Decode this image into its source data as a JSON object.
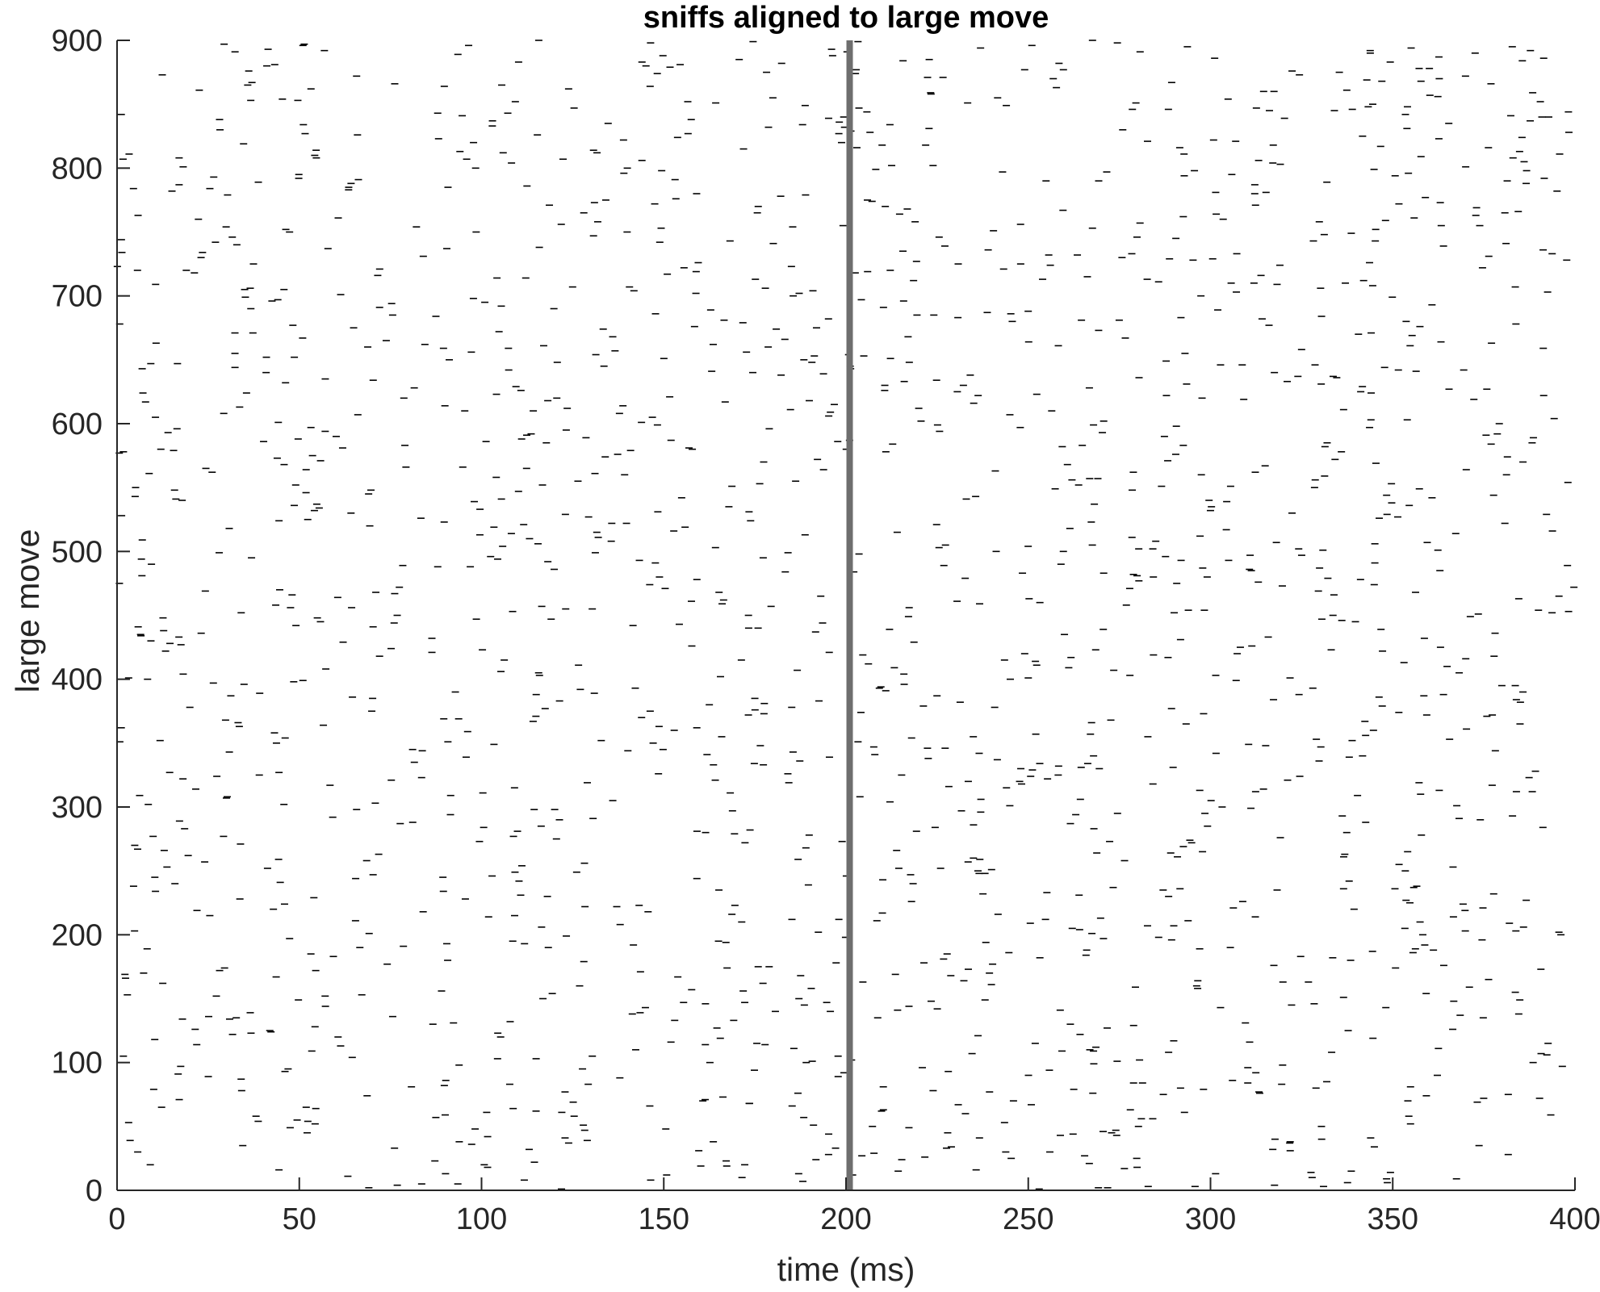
{
  "chart_data": {
    "type": "scatter",
    "title": "sniffs aligned to large move",
    "xlabel": "time (ms)",
    "ylabel": "large move",
    "xlim": [
      0,
      400
    ],
    "ylim": [
      0,
      900
    ],
    "xticks": [
      0,
      50,
      100,
      150,
      200,
      250,
      300,
      350,
      400
    ],
    "yticks": [
      0,
      100,
      200,
      300,
      400,
      500,
      600,
      700,
      800,
      900
    ],
    "xtick_labels": [
      "0",
      "50",
      "100",
      "150",
      "200",
      "250",
      "300",
      "350",
      "400"
    ],
    "ytick_labels": [
      "0",
      "100",
      "200",
      "300",
      "400",
      "500",
      "600",
      "700",
      "800",
      "900"
    ],
    "grid": false,
    "marker": "horizontal tick (raster)",
    "marker_color": "#000000",
    "alignment_line": {
      "x": 201,
      "color": "#6e6e6e"
    },
    "trials": {
      "count": 900,
      "min_sniffs_per_trial": 0,
      "max_sniffs_per_trial": 3
    },
    "note_on_series": "raster of ~1600 sniff times; each mark is one sniff at (time ms, trial index)"
  }
}
